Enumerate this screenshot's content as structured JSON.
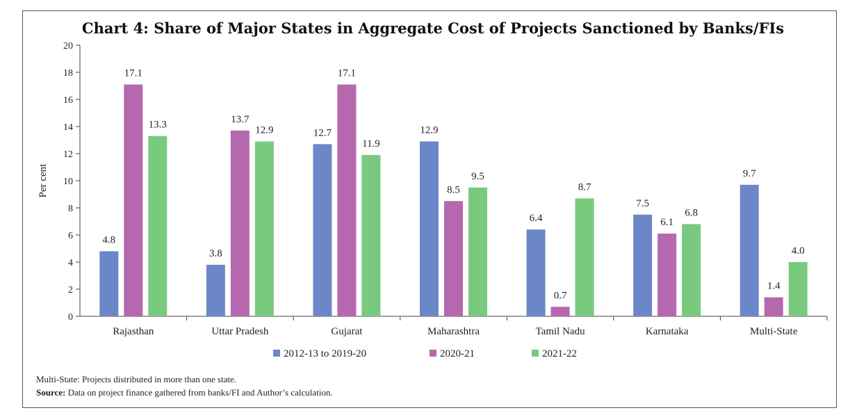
{
  "chart_data": {
    "type": "bar",
    "title": "Chart 4: Share of Major States in Aggregate Cost of Projects Sanctioned by Banks/FIs",
    "ylabel": "Per cent",
    "xlabel": "",
    "ylim": [
      0,
      20
    ],
    "yticks": [
      0,
      2,
      4,
      6,
      8,
      10,
      12,
      14,
      16,
      18,
      20
    ],
    "categories": [
      "Rajasthan",
      "Uttar Pradesh",
      "Gujarat",
      "Maharashtra",
      "Tamil Nadu",
      "Karnataka",
      "Multi-State"
    ],
    "series": [
      {
        "name": "2012-13 to 2019-20",
        "color": "#6b87c7",
        "values": [
          4.8,
          3.8,
          12.7,
          12.9,
          6.4,
          7.5,
          9.7
        ]
      },
      {
        "name": "2020-21",
        "color": "#b568ad",
        "values": [
          17.1,
          13.7,
          17.1,
          8.5,
          0.7,
          6.1,
          1.4
        ]
      },
      {
        "name": "2021-22",
        "color": "#79c97f",
        "values": [
          13.3,
          12.9,
          11.9,
          9.5,
          8.7,
          6.8,
          4.0
        ]
      }
    ],
    "legend_position": "bottom",
    "grid": false
  },
  "notes": {
    "note1": "Multi-State: Projects distributed in more than one state.",
    "source_label": "Source:",
    "source_text": " Data on project finance gathered from banks/FI and Author’s calculation."
  }
}
